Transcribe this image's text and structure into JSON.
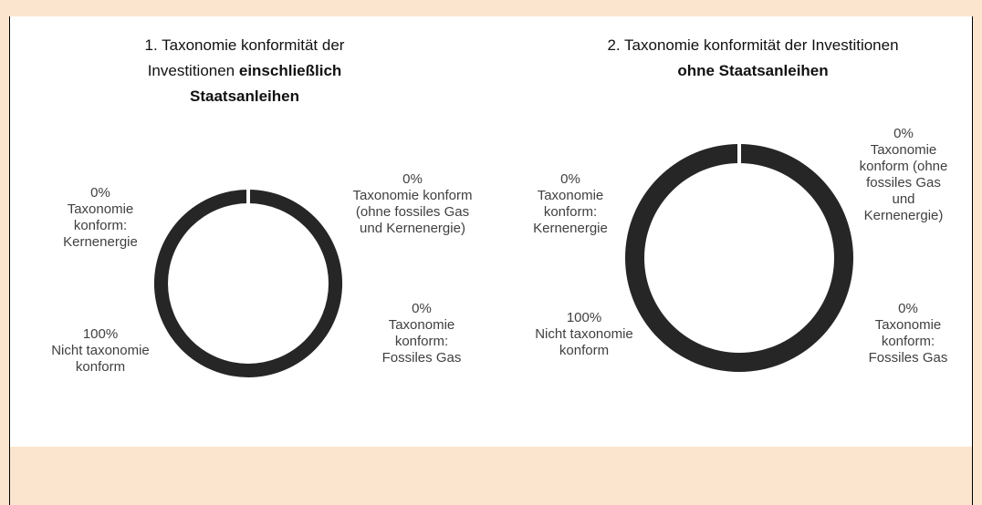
{
  "chart_data": [
    {
      "type": "donut",
      "title": "1. Taxonomie konformität der Investitionen",
      "title_bold": "einschließlich Staatsanleihen",
      "categories": [
        "Taxonomie konform (ohne fossiles Gas und Kernenergie)",
        "Taxonomie konform: Fossiles Gas",
        "Nicht taxonomie konform",
        "Taxonomie konform: Kernenergie"
      ],
      "values": [
        0,
        0,
        100,
        0
      ],
      "value_labels": [
        "0%",
        "0%",
        "100%",
        "0%"
      ],
      "color": "#262626"
    },
    {
      "type": "donut",
      "title": "2. Taxonomie konformität der Investitionen",
      "title_bold": "ohne Staatsanleihen",
      "categories": [
        "Taxonomie konform (ohne fossiles Gas und Kernenergie)",
        "Taxonomie konform: Fossiles Gas",
        "Nicht taxonomie konform",
        "Taxonomie konform: Kernenergie"
      ],
      "values": [
        0,
        0,
        100,
        0
      ],
      "value_labels": [
        "0%",
        "0%",
        "100%",
        "0%"
      ],
      "color": "#262626"
    }
  ]
}
